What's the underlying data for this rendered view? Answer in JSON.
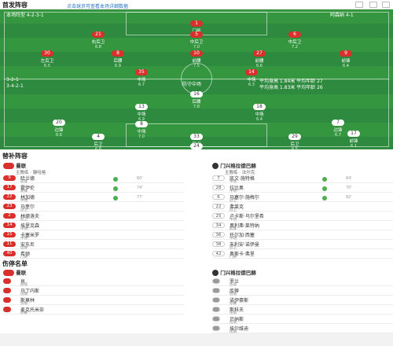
{
  "header": {
    "title": "首发阵容",
    "subtitle": "点击球员可查看本场详细数据"
  },
  "pitch": {
    "home_team_label": "本场阵型 4-2-3-1",
    "away_team_label": "阵型 4-4-2",
    "formation_left": "3-2-1",
    "formation_left_b": "3-4-2-1",
    "center_number": "16",
    "center_label": "防守中场",
    "coach_right_top": "阿森纳 4-1",
    "stat_right_a": "平均身高 1.84米 平均年龄 27",
    "stat_right_b": "平均身高 1.83米 平均年龄 26",
    "players": [
      {
        "num": "1",
        "name": "门将",
        "score": "7.1",
        "team": "home"
      },
      {
        "num": "21",
        "name": "右后卫",
        "score": "6.8",
        "team": "home"
      },
      {
        "num": "5",
        "name": "中后卫",
        "score": "7.0",
        "team": "home"
      },
      {
        "num": "6",
        "name": "中后卫",
        "score": "7.2",
        "team": "home"
      },
      {
        "num": "30",
        "name": "左后卫",
        "score": "6.5",
        "team": "home"
      },
      {
        "num": "8",
        "name": "后腰",
        "score": "6.9",
        "team": "home"
      },
      {
        "num": "10",
        "name": "前腰",
        "score": "7.5",
        "team": "home"
      },
      {
        "num": "27",
        "name": "前腰",
        "score": "6.6",
        "team": "home"
      },
      {
        "num": "9",
        "name": "前锋",
        "score": "6.4",
        "team": "home"
      },
      {
        "num": "35",
        "name": "中场",
        "score": "6.7",
        "team": "home"
      },
      {
        "num": "14",
        "name": "中场",
        "score": "6.3",
        "team": "home"
      },
      {
        "num": "16",
        "name": "后腰",
        "score": "7.8",
        "team": "away"
      },
      {
        "num": "13",
        "name": "中场",
        "score": "6.9",
        "team": "away"
      },
      {
        "num": "18",
        "name": "中场",
        "score": "6.4",
        "team": "away"
      },
      {
        "num": "20",
        "name": "边锋",
        "score": "6.6",
        "team": "away"
      },
      {
        "num": "8",
        "name": "中场",
        "score": "7.0",
        "team": "away"
      },
      {
        "num": "7",
        "name": "边锋",
        "score": "6.7",
        "team": "away"
      },
      {
        "num": "17",
        "name": "前锋",
        "score": "6.1",
        "team": "away"
      },
      {
        "num": "4",
        "name": "后卫",
        "score": "6.8",
        "team": "away"
      },
      {
        "num": "33",
        "name": "后卫",
        "score": "7.1",
        "team": "away"
      },
      {
        "num": "29",
        "name": "后卫",
        "score": "6.5",
        "team": "away"
      },
      {
        "num": "24",
        "name": "门将",
        "score": "6.2",
        "team": "away"
      }
    ]
  },
  "bench": {
    "title": "替补阵容",
    "home_header": "曼联",
    "away_header": "门兴格拉德巴赫",
    "home_coach": "主教练 · 滕哈格",
    "away_coach": "主教练 · 法尔克",
    "home": [
      {
        "num": "9",
        "name": "哈兰德",
        "pos": "前锋",
        "time": "60'"
      },
      {
        "num": "17",
        "name": "霍伊伦",
        "pos": "前锋",
        "time": "74'"
      },
      {
        "num": "22",
        "name": "林加德",
        "pos": "中场",
        "time": "77'"
      },
      {
        "num": "23",
        "name": "马奎尔",
        "pos": "后卫",
        "time": ""
      },
      {
        "num": "2",
        "name": "林德洛夫",
        "pos": "后卫",
        "time": ""
      },
      {
        "num": "14",
        "name": "埃里克森",
        "pos": "中场",
        "time": ""
      },
      {
        "num": "15",
        "name": "卡塞米罗",
        "pos": "中场",
        "time": ""
      },
      {
        "num": "11",
        "name": "安东尼",
        "pos": "边锋",
        "time": ""
      },
      {
        "num": "40",
        "name": "希顿",
        "pos": "门将",
        "time": ""
      }
    ],
    "away": [
      {
        "num": "7",
        "name": "凯文·施特格",
        "pos": "中场",
        "time": "64'"
      },
      {
        "num": "28",
        "name": "拉比奥",
        "pos": "中场",
        "time": "70'"
      },
      {
        "num": "6",
        "name": "马塞尔·施梅尔",
        "pos": "后卫",
        "time": "82'"
      },
      {
        "num": "22",
        "name": "弗莱克",
        "pos": "后卫",
        "time": ""
      },
      {
        "num": "25",
        "name": "卢卡斯·乌尔里希",
        "pos": "中场",
        "time": ""
      },
      {
        "num": "34",
        "name": "奥利弗·莱特纳",
        "pos": "前锋",
        "time": ""
      },
      {
        "num": "36",
        "name": "托尔加·西塞",
        "pos": "中场",
        "time": ""
      },
      {
        "num": "38",
        "name": "朱利安·诺伊曼",
        "pos": "后卫",
        "time": ""
      },
      {
        "num": "42",
        "name": "奥斯卡·弗里",
        "pos": "门将",
        "time": ""
      }
    ]
  },
  "injuries": {
    "title": "伤停名单",
    "home_header": "曼联",
    "away_header": "门兴格拉德巴赫",
    "home": [
      {
        "name": "肖",
        "reason": "伤病"
      },
      {
        "name": "马丁内斯",
        "reason": "伤病"
      },
      {
        "name": "斯莫林",
        "reason": "伤病"
      },
      {
        "name": "麦克托米奈",
        "reason": "停赛"
      }
    ],
    "away": [
      {
        "name": "罗兰",
        "reason": "伤病"
      },
      {
        "name": "库蒂",
        "reason": "伤病"
      },
      {
        "name": "诺伊豪斯",
        "reason": "停赛"
      },
      {
        "name": "斯科夫",
        "reason": "伤病"
      },
      {
        "name": "贝纳斯",
        "reason": "伤病"
      },
      {
        "name": "埃尔维迪",
        "reason": "伤病"
      }
    ]
  }
}
